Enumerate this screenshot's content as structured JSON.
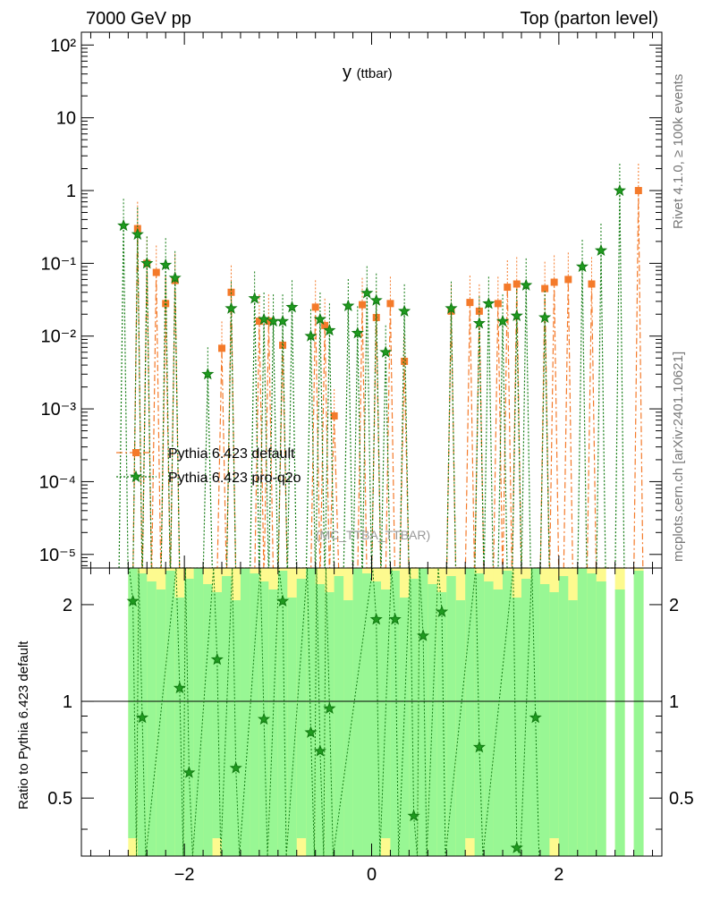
{
  "header": {
    "left": "7000 GeV pp",
    "right": "Top (parton level)"
  },
  "side_text": {
    "rivet": "Rivet 4.1.0, ≥ 100k events",
    "mcplots": "mcplots.cern.ch [arXiv:2401.10621]"
  },
  "plot_title": {
    "main": "y",
    "sub": "(ttbar)"
  },
  "watermark": "(MC_TTBA_TTBAR)",
  "colors": {
    "default": "#f47a2a",
    "pro_q2o": "#117a11",
    "band_green": "#98f794",
    "band_yellow": "#fdfa8f",
    "grey_text": "#777777"
  },
  "chart_data": [
    {
      "type": "line",
      "panel": "main",
      "ylog": true,
      "xlim": [
        -3.1,
        3.1
      ],
      "ylim": [
        6.5e-06,
        150
      ],
      "ylabel": "",
      "y_ticks": [
        {
          "v": 1e-05,
          "label": "10⁻⁵"
        },
        {
          "v": 0.0001,
          "label": "10⁻⁴"
        },
        {
          "v": 0.001,
          "label": "10⁻³"
        },
        {
          "v": 0.01,
          "label": "10⁻²"
        },
        {
          "v": 0.1,
          "label": "10⁻¹"
        },
        {
          "v": 1,
          "label": "1"
        },
        {
          "v": 10,
          "label": "10"
        },
        {
          "v": 100,
          "label": "10²"
        }
      ],
      "legend": [
        {
          "label": "Pythia 6.423 default",
          "series": "default"
        },
        {
          "label": "Pythia 6.423 pro-q2o",
          "series": "pro_q2o"
        }
      ],
      "series": [
        {
          "name": "Pythia 6.423 default",
          "key": "default",
          "marker": "square",
          "x": [
            -2.5,
            -2.4,
            -2.3,
            -2.2,
            -2.1,
            -1.6,
            -1.5,
            -1.2,
            -1.1,
            -0.95,
            -0.6,
            -0.5,
            -0.4,
            -0.1,
            0.05,
            0.2,
            0.35,
            0.85,
            1.05,
            1.15,
            1.35,
            1.45,
            1.55,
            1.85,
            1.95,
            2.1,
            2.35,
            2.85
          ],
          "values": [
            0.3,
            0.1,
            0.075,
            0.028,
            0.058,
            0.0068,
            0.04,
            0.016,
            0.016,
            0.0075,
            0.025,
            0.014,
            0.0008,
            0.027,
            0.018,
            0.028,
            0.0045,
            0.022,
            0.029,
            0.022,
            0.028,
            0.047,
            0.052,
            0.045,
            0.055,
            0.06,
            0.052,
            1.0
          ]
        },
        {
          "name": "Pythia 6.423 pro-q2o",
          "key": "pro_q2o",
          "marker": "star",
          "x": [
            -2.65,
            -2.5,
            -2.4,
            -2.2,
            -2.1,
            -1.75,
            -1.5,
            -1.25,
            -1.15,
            -1.05,
            -0.95,
            -0.85,
            -0.65,
            -0.55,
            -0.45,
            -0.25,
            -0.15,
            -0.05,
            0.05,
            0.15,
            0.35,
            0.85,
            1.15,
            1.25,
            1.4,
            1.55,
            1.65,
            1.85,
            2.25,
            2.45,
            2.65
          ],
          "values": [
            0.33,
            0.25,
            0.1,
            0.095,
            0.063,
            0.003,
            0.024,
            0.033,
            0.017,
            0.016,
            0.016,
            0.025,
            0.01,
            0.017,
            0.012,
            0.026,
            0.011,
            0.039,
            0.031,
            0.006,
            0.022,
            0.024,
            0.015,
            0.028,
            0.016,
            0.019,
            0.05,
            0.018,
            0.09,
            0.15,
            1.0
          ]
        }
      ]
    },
    {
      "type": "line",
      "panel": "ratio",
      "ylog": true,
      "xlim": [
        -3.1,
        3.1
      ],
      "ylim": [
        0.33,
        2.6
      ],
      "ylabel": "Ratio to Pythia 6.423 default",
      "x_ticks": [
        {
          "v": -2,
          "label": "−2"
        },
        {
          "v": 0,
          "label": "0"
        },
        {
          "v": 2,
          "label": "2"
        }
      ],
      "y_ticks": [
        {
          "v": 0.5,
          "label": "0.5"
        },
        {
          "v": 1,
          "label": "1"
        },
        {
          "v": 2,
          "label": "2"
        }
      ],
      "reference_line": 1,
      "band": {
        "x_range": [
          -2.6,
          2.85
        ],
        "gaps": [
          [
            2.5,
            2.6
          ],
          [
            2.7,
            2.8
          ]
        ]
      },
      "series": [
        {
          "name": "Pythia 6.423 pro-q2o",
          "key": "pro_q2o",
          "marker": "star",
          "x": [
            -2.55,
            -2.45,
            -2.05,
            -1.95,
            -1.65,
            -1.45,
            -1.15,
            -0.95,
            -0.65,
            -0.55,
            -0.45,
            0.05,
            0.25,
            0.45,
            0.55,
            0.75,
            1.15,
            1.55,
            1.75
          ],
          "values": [
            2.05,
            0.89,
            1.1,
            0.6,
            1.35,
            0.62,
            0.88,
            2.05,
            0.8,
            0.7,
            0.95,
            1.8,
            1.8,
            0.44,
            1.6,
            1.9,
            0.72,
            0.35,
            0.89
          ]
        }
      ]
    }
  ]
}
